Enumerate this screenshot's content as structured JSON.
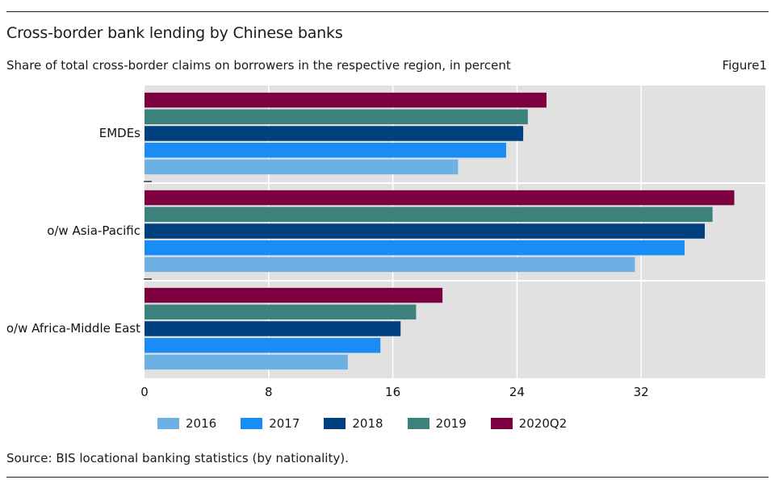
{
  "header": {
    "title": "Cross-border bank lending by Chinese banks",
    "subtitle": "Share of total cross-border claims on borrowers in the respective region, in percent",
    "figure_label": "Figure1"
  },
  "footer": {
    "source": "Source: BIS locational banking statistics (by nationality)."
  },
  "colors": {
    "2016": "#6cb0e4",
    "2017": "#1a8cf5",
    "2018": "#00407e",
    "2019": "#3d817d",
    "2020Q2": "#7d0040",
    "plot_background": "#e1e1e1",
    "grid": "#ffffff"
  },
  "chart_data": {
    "type": "bar",
    "orientation": "horizontal",
    "categories": [
      "EMDEs",
      "o/w Asia-Pacific",
      "o/w Africa-Middle East"
    ],
    "series": [
      {
        "name": "2016",
        "values": [
          20.2,
          31.6,
          13.1
        ]
      },
      {
        "name": "2017",
        "values": [
          23.3,
          34.8,
          15.2
        ]
      },
      {
        "name": "2018",
        "values": [
          24.4,
          36.1,
          16.5
        ]
      },
      {
        "name": "2019",
        "values": [
          24.7,
          36.6,
          17.5
        ]
      },
      {
        "name": "2020Q2",
        "values": [
          25.9,
          38.0,
          19.2
        ]
      }
    ],
    "xlim": [
      0,
      40
    ],
    "xticks": [
      "0",
      "8",
      "16",
      "24",
      "32"
    ],
    "xtick_values": [
      0,
      8,
      16,
      24,
      32
    ],
    "grid": true,
    "legend_position": "bottom"
  }
}
